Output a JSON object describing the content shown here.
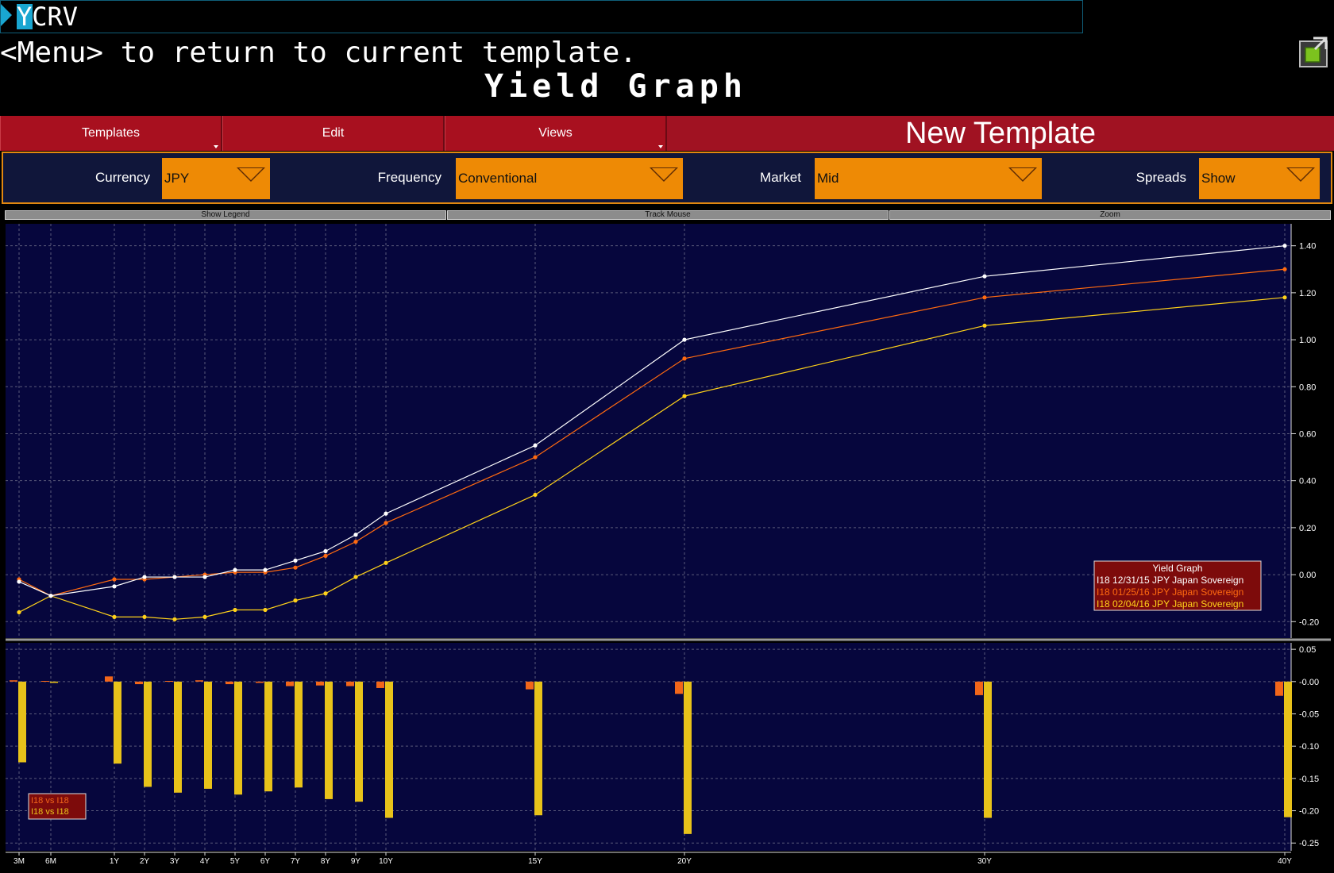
{
  "command": {
    "text": "YCRV"
  },
  "menu_hint": "<Menu> to return to current template.",
  "page_title": "Yield Graph",
  "toolbar": {
    "templates_label": "Templates",
    "edit_label": "Edit",
    "views_label": "Views",
    "template_name": "New Template"
  },
  "selectors": {
    "currency": {
      "label": "Currency",
      "value": "JPY"
    },
    "frequency": {
      "label": "Frequency",
      "value": "Conventional"
    },
    "market": {
      "label": "Market",
      "value": "Mid"
    },
    "spreads": {
      "label": "Spreads",
      "value": "Show"
    }
  },
  "chart_controls": {
    "show_legend": "Show Legend",
    "track_mouse": "Track Mouse",
    "zoom": "Zoom"
  },
  "colors": {
    "plot_bg": "#06063d",
    "series_1": "#ffffff",
    "series_2": "#ff6a10",
    "series_3": "#ffd21a",
    "bar_orange": "#f2661a",
    "bar_yellow": "#e8c21a",
    "toolbar_red": "#a01222",
    "selector_orange": "#ee8a05"
  },
  "chart_data": [
    {
      "type": "line",
      "x": [
        "3M",
        "6M",
        "1Y",
        "2Y",
        "3Y",
        "4Y",
        "5Y",
        "6Y",
        "7Y",
        "8Y",
        "9Y",
        "10Y",
        "15Y",
        "20Y",
        "30Y",
        "40Y"
      ],
      "x_years": [
        0.25,
        0.5,
        1,
        2,
        3,
        4,
        5,
        6,
        7,
        8,
        9,
        10,
        15,
        20,
        30,
        40
      ],
      "ylim": [
        -0.27,
        1.48
      ],
      "yticks": [
        "1.40",
        "1.20",
        "1.00",
        "0.80",
        "0.60",
        "0.40",
        "0.20",
        "0.00",
        "-0.20"
      ],
      "ytick_values": [
        1.4,
        1.2,
        1.0,
        0.8,
        0.6,
        0.4,
        0.2,
        0.0,
        -0.2
      ],
      "grid": true,
      "legend_position": "bottom-right",
      "legend_title": "Yield Graph",
      "series": [
        {
          "name": "I18 12/31/15   JPY Japan Sovereign",
          "color": "#ffffff",
          "values": [
            -0.03,
            -0.09,
            -0.05,
            -0.01,
            -0.01,
            -0.01,
            0.02,
            0.02,
            0.06,
            0.1,
            0.17,
            0.26,
            0.55,
            1.0,
            1.27,
            1.4
          ]
        },
        {
          "name": "I18 01/25/16   JPY Japan Sovereign",
          "color": "#ff6a10",
          "values": [
            -0.02,
            -0.09,
            -0.02,
            -0.02,
            -0.01,
            0.0,
            0.01,
            0.01,
            0.03,
            0.08,
            0.14,
            0.22,
            0.5,
            0.92,
            1.18,
            1.3
          ]
        },
        {
          "name": "I18 02/04/16   JPY Japan Sovereign",
          "color": "#ffd21a",
          "values": [
            -0.16,
            -0.09,
            -0.18,
            -0.18,
            -0.19,
            -0.18,
            -0.15,
            -0.15,
            -0.11,
            -0.08,
            -0.01,
            0.05,
            0.34,
            0.76,
            1.06,
            1.18
          ]
        }
      ]
    },
    {
      "type": "bar",
      "x": [
        "3M",
        "6M",
        "1Y",
        "2Y",
        "3Y",
        "4Y",
        "5Y",
        "6Y",
        "7Y",
        "8Y",
        "9Y",
        "10Y",
        "15Y",
        "20Y",
        "30Y",
        "40Y"
      ],
      "ylim": [
        -0.262,
        0.06
      ],
      "yticks": [
        "0.05",
        "-0.00",
        "-0.05",
        "-0.10",
        "-0.15",
        "-0.20",
        "-0.25"
      ],
      "ytick_values": [
        0.05,
        0.0,
        -0.05,
        -0.1,
        -0.15,
        -0.2,
        -0.25
      ],
      "legend_position": "bottom-left",
      "legend": [
        "I18     vs I18",
        "I18     vs I18"
      ],
      "series": [
        {
          "name": "I18     vs I18",
          "color": "#f2661a",
          "values": [
            0.002,
            0.001,
            0.008,
            -0.004,
            0.001,
            0.002,
            -0.004,
            -0.002,
            -0.007,
            -0.006,
            -0.007,
            -0.01,
            -0.012,
            -0.019,
            -0.021,
            -0.022
          ]
        },
        {
          "name": "I18     vs I18",
          "color": "#e8c21a",
          "values": [
            -0.125,
            -0.002,
            -0.127,
            -0.163,
            -0.172,
            -0.166,
            -0.175,
            -0.17,
            -0.164,
            -0.182,
            -0.186,
            -0.211,
            -0.207,
            -0.236,
            -0.211,
            -0.21
          ]
        }
      ]
    }
  ]
}
